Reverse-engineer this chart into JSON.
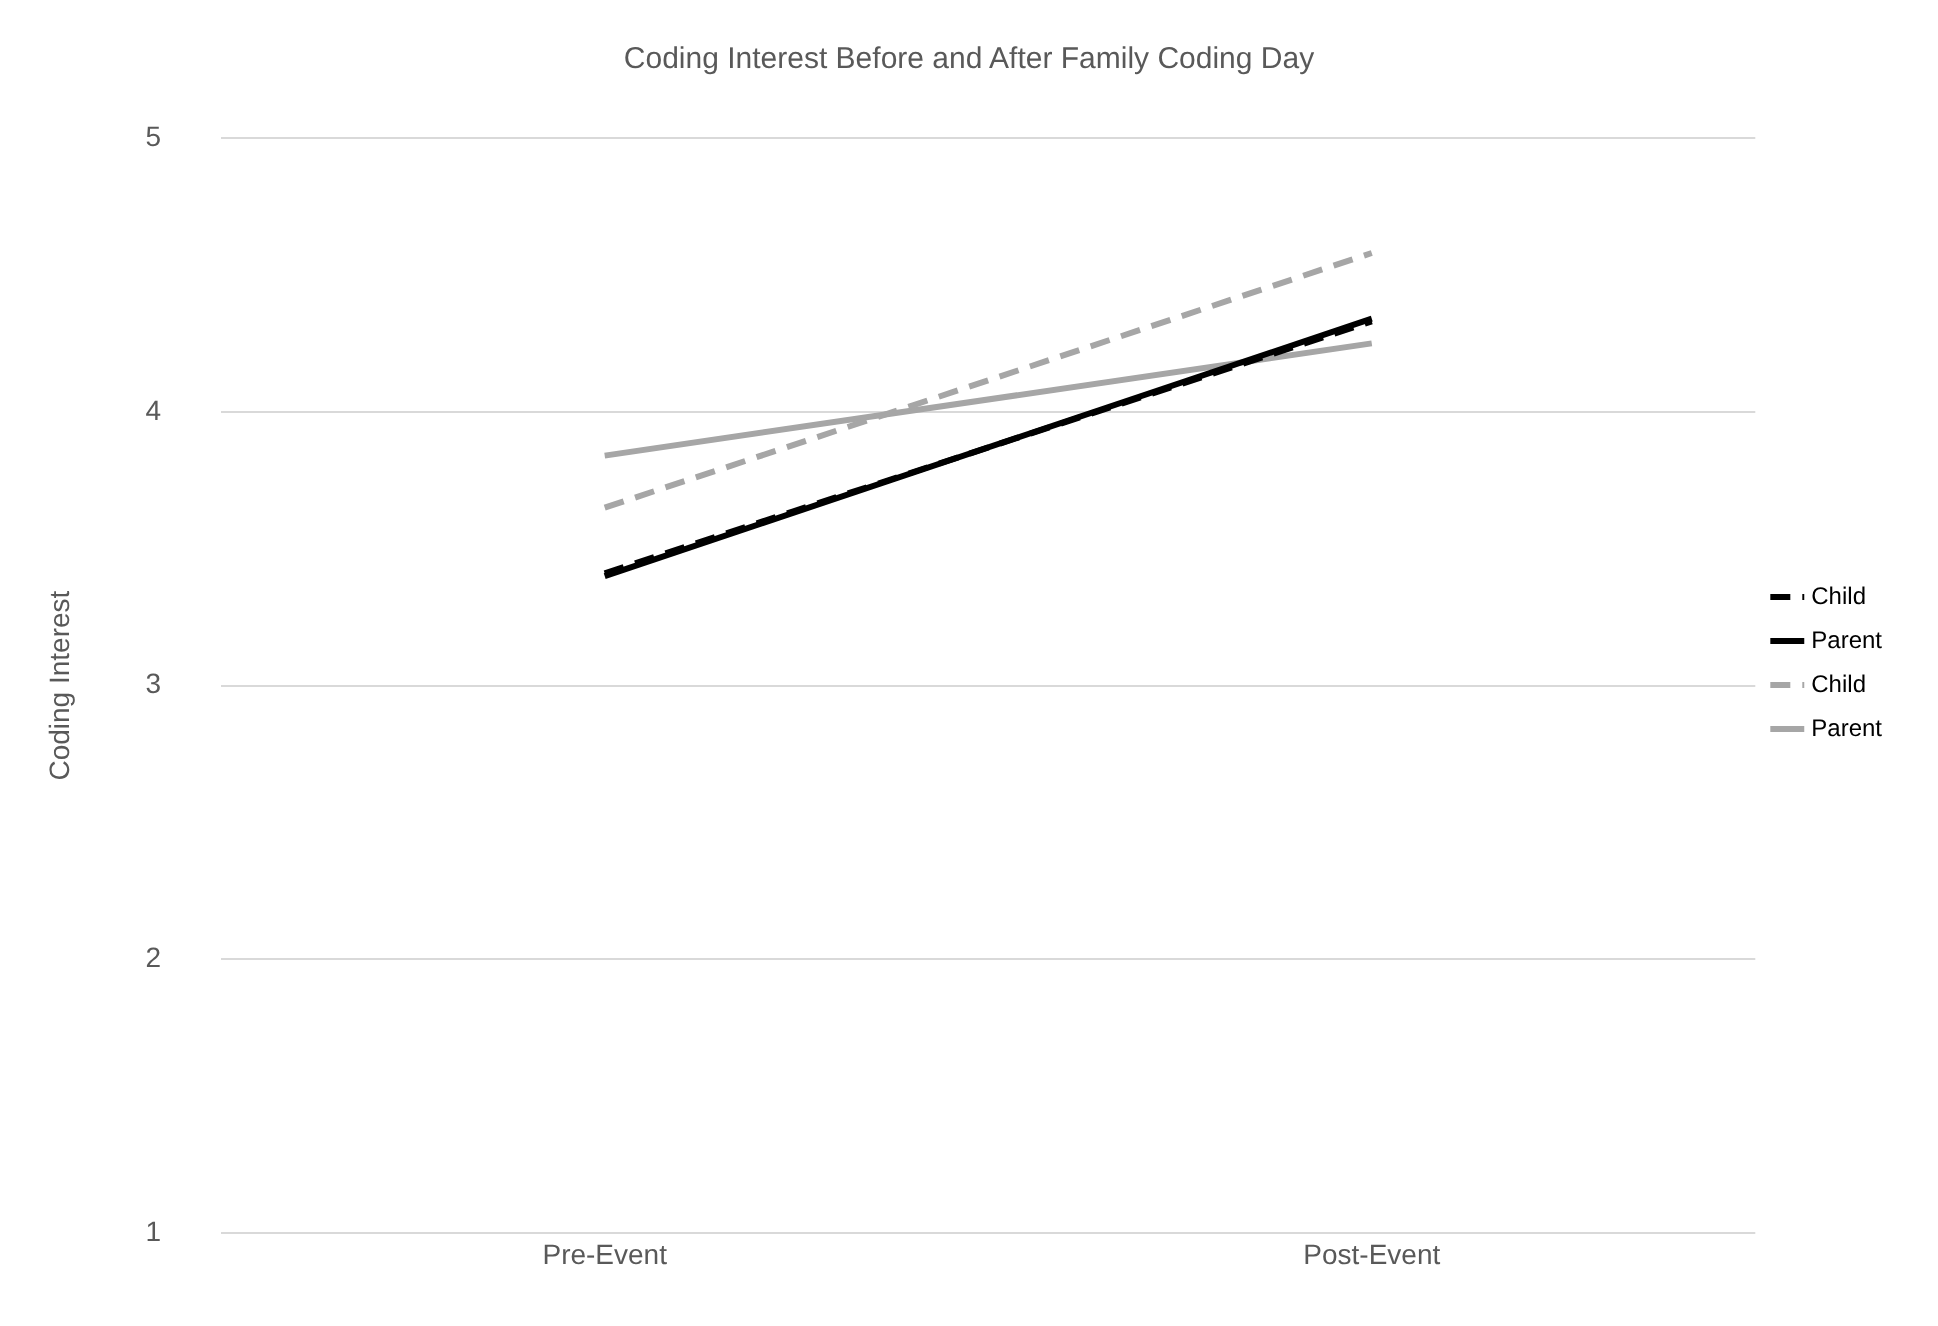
{
  "chart_data": {
    "type": "line",
    "title": "Coding Interest Before and After Family Coding Day",
    "ylabel": "Coding Interest",
    "categories": [
      "Pre-Event",
      "Post-Event"
    ],
    "series": [
      {
        "name": "Child",
        "color": "#000000",
        "line_style": "dashed",
        "values": [
          3.41,
          4.33
        ]
      },
      {
        "name": "Parent",
        "color": "#000000",
        "line_style": "solid",
        "values": [
          3.4,
          4.34
        ]
      },
      {
        "name": "Child",
        "color": "#a6a6a6",
        "line_style": "dashed",
        "values": [
          3.65,
          4.58
        ]
      },
      {
        "name": "Parent",
        "color": "#a6a6a6",
        "line_style": "solid",
        "values": [
          3.84,
          4.25
        ]
      }
    ],
    "ylim": [
      1,
      5
    ],
    "yticks": [
      1,
      2,
      3,
      4,
      5
    ],
    "grid": "y",
    "legend": "right",
    "marker": "none"
  }
}
